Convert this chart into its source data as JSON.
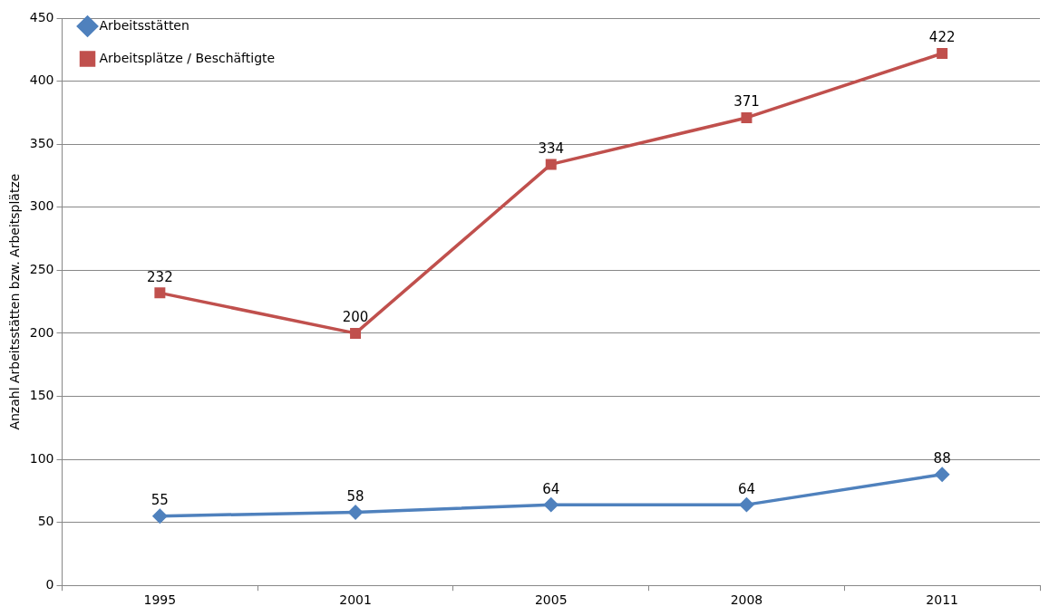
{
  "chart_data": {
    "type": "line",
    "ylabel": "Anzahl Arbeitsstätten bzw. Arbeitsplätze",
    "categories": [
      "1995",
      "2001",
      "2005",
      "2008",
      "2011"
    ],
    "series": [
      {
        "name": "Arbeitsstätten",
        "color": "#4f81bd",
        "marker": "diamond",
        "values": [
          55,
          58,
          64,
          64,
          88
        ]
      },
      {
        "name": "Arbeitsplätze / Beschäftigte",
        "color": "#c0504d",
        "marker": "square",
        "values": [
          232,
          200,
          334,
          371,
          422
        ]
      }
    ],
    "ylim": [
      0,
      450
    ],
    "yticks": [
      0,
      50,
      100,
      150,
      200,
      250,
      300,
      350,
      400,
      450
    ],
    "grid": "y",
    "legend": "top left",
    "data_labels": true,
    "line_style": "solid"
  }
}
